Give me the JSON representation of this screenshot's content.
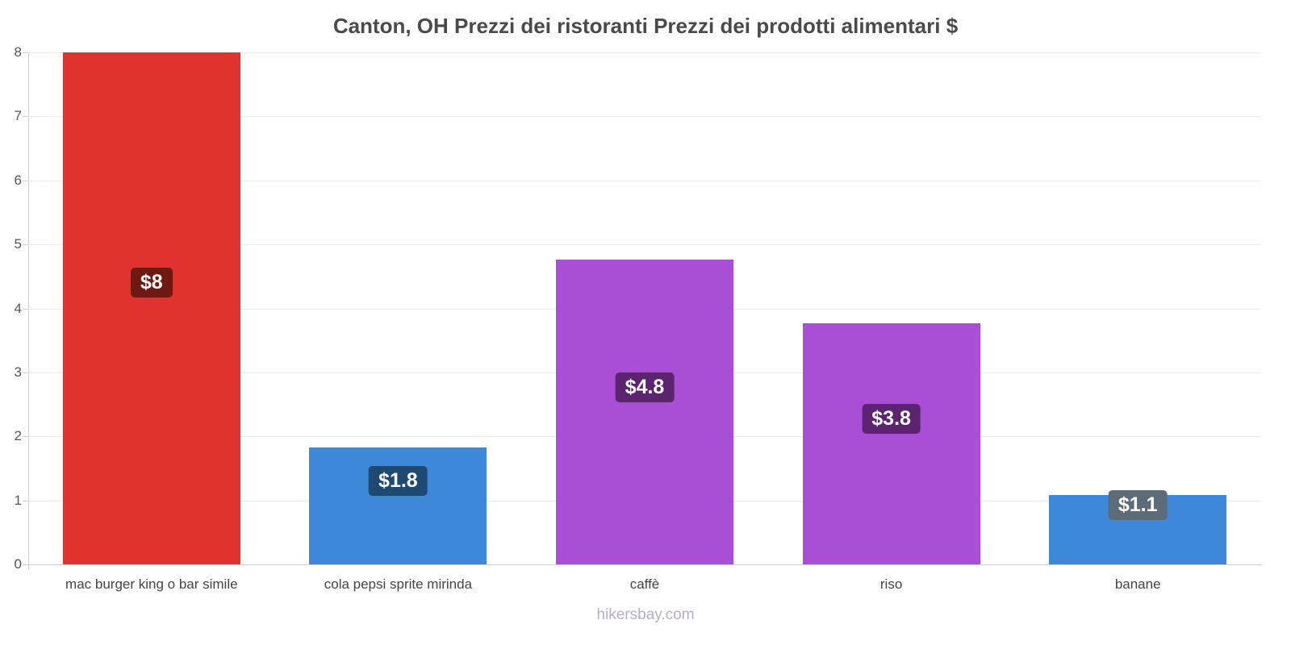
{
  "footer": {
    "text": "hikersbay.com"
  },
  "chart_data": {
    "type": "bar",
    "title": "Canton, OH Prezzi dei ristoranti Prezzi dei prodotti alimentari $",
    "categories": [
      "mac burger king o bar simile",
      "cola pepsi sprite mirinda",
      "caffè",
      "riso",
      "banane"
    ],
    "values": [
      8,
      1.83,
      4.76,
      3.77,
      1.08
    ],
    "value_labels": [
      "$8",
      "$1.8",
      "$4.8",
      "$3.8",
      "$1.1"
    ],
    "bar_colors": [
      "#e0322f",
      "#3d88d8",
      "#a84fd6",
      "#a84fd6",
      "#3d88d8"
    ],
    "label_box_colors": [
      "#6e1a12",
      "#1e4a72",
      "#5c2370",
      "#5c2370",
      "#5d6b78"
    ],
    "label_pos_frac_from_top": [
      0.45,
      0.29,
      0.42,
      0.4,
      0.15
    ],
    "currency": "$",
    "xlabel": "",
    "ylabel": "",
    "ylim": [
      0,
      8
    ],
    "yticks": [
      0,
      1,
      2,
      3,
      4,
      5,
      6,
      7,
      8
    ],
    "grid": "horizontal",
    "legend": "none"
  }
}
